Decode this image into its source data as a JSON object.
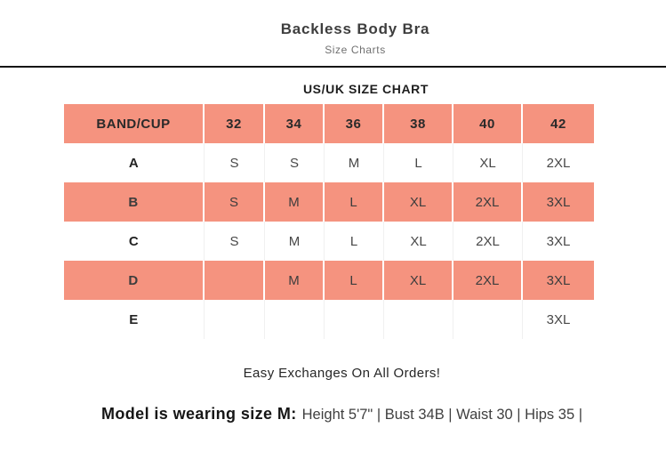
{
  "header": {
    "title": "Backless Body Bra",
    "subtitle": "Size Charts"
  },
  "section": {
    "heading": "US/UK SIZE CHART"
  },
  "chart_data": {
    "type": "table",
    "title": "US/UK SIZE CHART",
    "columns": [
      "BAND/CUP",
      "32",
      "34",
      "36",
      "38",
      "40",
      "42"
    ],
    "rows": [
      {
        "band": "A",
        "values": [
          "S",
          "S",
          "M",
          "L",
          "XL",
          "2XL"
        ]
      },
      {
        "band": "B",
        "values": [
          "S",
          "M",
          "L",
          "XL",
          "2XL",
          "3XL"
        ]
      },
      {
        "band": "C",
        "values": [
          "S",
          "M",
          "L",
          "XL",
          "2XL",
          "3XL"
        ]
      },
      {
        "band": "D",
        "values": [
          "",
          "M",
          "L",
          "XL",
          "2XL",
          "3XL"
        ]
      },
      {
        "band": "E",
        "values": [
          "",
          "",
          "",
          "",
          "",
          "3XL"
        ]
      }
    ],
    "highlighted_rows": [
      "header",
      "B",
      "D"
    ]
  },
  "footer": {
    "exchange_note": "Easy Exchanges On All Orders!",
    "model_label": "Model is wearing size M:",
    "model_stats": "Height 5'7\" | Bust 34B | Waist 30 | Hips 35 |"
  },
  "colors": {
    "salmon": "#f5937f",
    "divider": "#151515",
    "white_row_grid": "#f0f0f0"
  }
}
